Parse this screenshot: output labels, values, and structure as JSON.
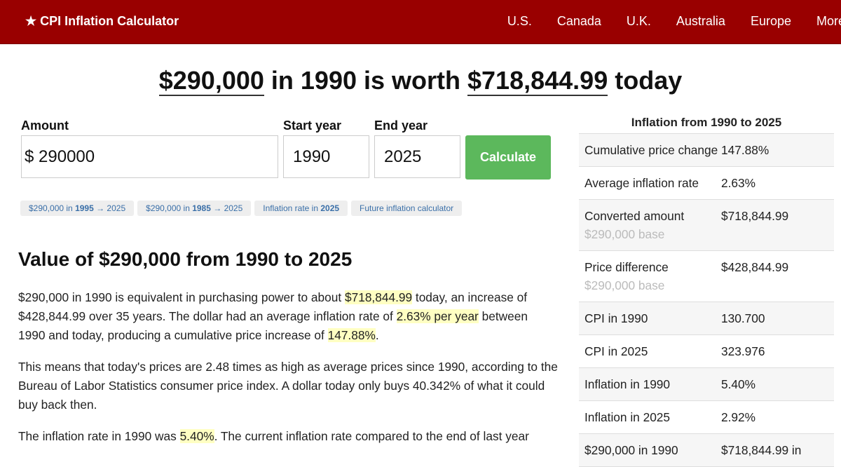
{
  "header": {
    "brand": "★ CPI Inflation Calculator",
    "nav": [
      "U.S.",
      "Canada",
      "U.K.",
      "Australia",
      "Europe",
      "More"
    ]
  },
  "headline": {
    "amount": "$290,000",
    "mid": "in 1990 is worth",
    "result": "$718,844.99",
    "tail": "today"
  },
  "form": {
    "amount_label": "Amount",
    "currency": "$",
    "amount_value": "290000",
    "start_label": "Start year",
    "start_value": "1990",
    "end_label": "End year",
    "end_value": "2025",
    "button": "Calculate"
  },
  "chips": [
    {
      "pre": "$290,000 in ",
      "bold": "1995",
      "post": " → 2025"
    },
    {
      "pre": "$290,000 in ",
      "bold": "1985",
      "post": " → 2025"
    },
    {
      "pre": "Inflation rate in ",
      "bold": "2025"
    },
    {
      "pre": "Future inflation calculator"
    }
  ],
  "section": {
    "heading": "Value of $290,000 from 1990 to 2025",
    "paragraphs": [
      [
        {
          "text": "$290,000 in 1990 is equivalent in purchasing power to about "
        },
        {
          "text": "$718,844.99",
          "highlight": true
        },
        {
          "text": " today, an increase of $428,844.99 over 35 years. The dollar had an average inflation rate of "
        },
        {
          "text": "2.63% per year",
          "highlight": true
        },
        {
          "text": " between 1990 and today, producing a cumulative price increase of "
        },
        {
          "text": "147.88%",
          "highlight": true
        },
        {
          "text": "."
        }
      ],
      [
        {
          "text": "This means that today's prices are 2.48 times as high as average prices since 1990, according to the Bureau of Labor Statistics consumer price index. A dollar today only buys 40.342% of what it could buy back then."
        }
      ],
      [
        {
          "text": "The inflation rate in 1990 was "
        },
        {
          "text": "5.40%",
          "highlight": true
        },
        {
          "text": ". The current inflation rate compared to the end of last year"
        }
      ]
    ]
  },
  "sidebar": {
    "title": "Inflation from 1990 to 2025",
    "rows": [
      {
        "label": "Cumulative price change",
        "value": "147.88%"
      },
      {
        "label": "Average inflation rate",
        "value": "2.63%"
      },
      {
        "label": "Converted amount",
        "note": "$290,000 base",
        "value": "$718,844.99"
      },
      {
        "label": "Price difference",
        "note": "$290,000 base",
        "value": "$428,844.99"
      },
      {
        "label": "CPI in 1990",
        "value": "130.700"
      },
      {
        "label": "CPI in 2025",
        "value": "323.976"
      },
      {
        "label": "Inflation in 1990",
        "value": "5.40%"
      },
      {
        "label": "Inflation in 2025",
        "value": "2.92%"
      },
      {
        "label": "$290,000 in 1990",
        "value": "$718,844.99 in"
      }
    ]
  }
}
